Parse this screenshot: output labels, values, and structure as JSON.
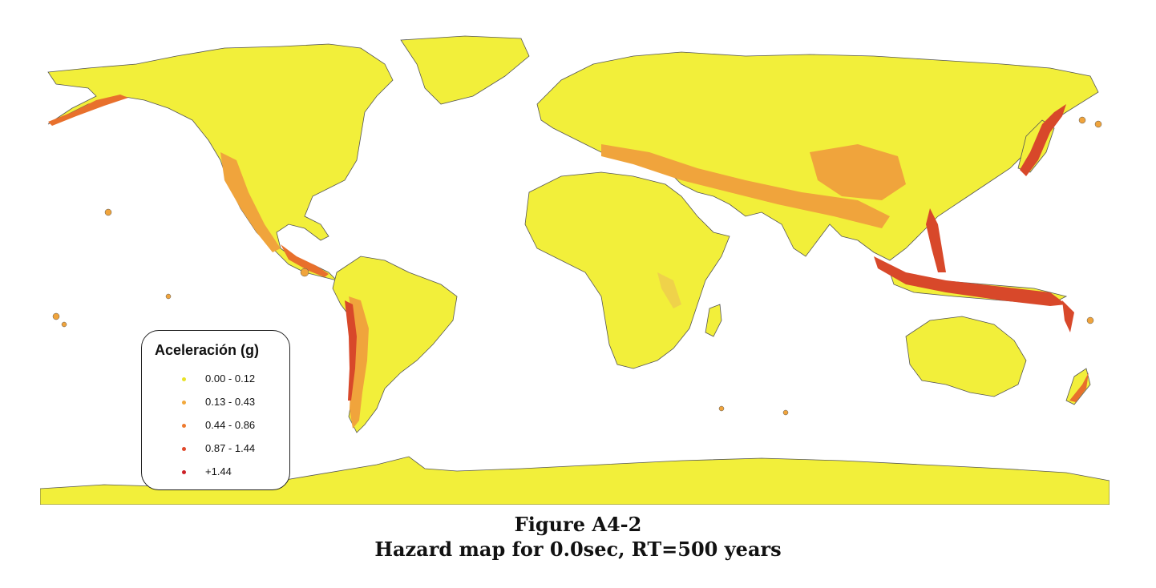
{
  "map": {
    "background": "#ffffff",
    "land_color": "#f2ef3a",
    "hazard_colors": [
      "#efd24a",
      "#f0a43c",
      "#e8702c",
      "#d8482a",
      "#c62026"
    ]
  },
  "legend": {
    "title": "Aceleración (g)",
    "items": [
      {
        "label": "0.00 - 0.12",
        "color": "#e8e227"
      },
      {
        "label": "0.13 - 0.43",
        "color": "#f2a83c"
      },
      {
        "label": "0.44 - 0.86",
        "color": "#ee7a2e"
      },
      {
        "label": "0.87 - 1.44",
        "color": "#e0482a"
      },
      {
        "label": "+1.44",
        "color": "#cc1f26"
      }
    ]
  },
  "caption": {
    "figure_label": "Figure A4-2",
    "title": "Hazard map for 0.0sec, RT=500 years"
  }
}
